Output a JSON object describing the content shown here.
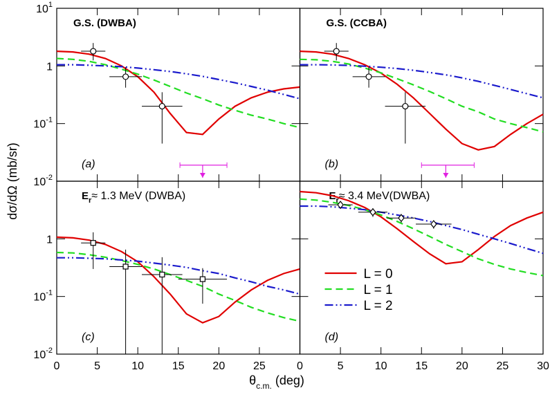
{
  "ylabel": "dσ/dΩ (mb/sr)",
  "xlabel": {
    "main": "θ",
    "sub": "c.m.",
    "rest": " (deg)"
  },
  "chart_data": [
    {
      "type": "line",
      "title": "G.S. (DWBA)",
      "panel_label": "(a)",
      "log_y": true,
      "xlim": [
        0,
        30
      ],
      "ylim": [
        0.01,
        10
      ],
      "xticks": [
        0,
        5,
        10,
        15,
        20,
        25,
        30
      ],
      "xtick_labels": false,
      "yticks": [
        {
          "value": 0.01,
          "label": "10",
          "sup": "-2"
        },
        {
          "value": 0.1,
          "label": "10",
          "sup": "-1"
        },
        1,
        {
          "value": 10,
          "label": "10",
          "sup": "1"
        }
      ],
      "x": [
        0,
        2,
        4,
        6,
        8,
        10,
        12,
        14,
        16,
        18,
        20,
        22,
        24,
        26,
        28,
        30
      ],
      "series": [
        {
          "color": "#e00000",
          "dash": "solid",
          "values": [
            1.8,
            1.75,
            1.6,
            1.35,
            1.0,
            0.65,
            0.35,
            0.15,
            0.07,
            0.065,
            0.12,
            0.2,
            0.28,
            0.35,
            0.4,
            0.43
          ]
        },
        {
          "color": "#22dd22",
          "dash": "dashed",
          "values": [
            1.35,
            1.3,
            1.2,
            1.05,
            0.88,
            0.72,
            0.57,
            0.44,
            0.34,
            0.27,
            0.21,
            0.17,
            0.14,
            0.12,
            0.1,
            0.085
          ]
        },
        {
          "color": "#1a1acc",
          "dash": "dashdot",
          "values": [
            1.05,
            1.05,
            1.03,
            1.0,
            0.97,
            0.92,
            0.86,
            0.8,
            0.73,
            0.66,
            0.58,
            0.51,
            0.44,
            0.38,
            0.32,
            0.27
          ]
        }
      ],
      "points": {
        "marker": "circle",
        "x": [
          4.5,
          8.5,
          13
        ],
        "values": [
          1.8,
          0.65,
          0.2
        ],
        "xerr": [
          1.5,
          2,
          2.5
        ],
        "y_low": [
          1.25,
          0.42,
          0.045
        ],
        "y_high": [
          2.5,
          0.95,
          0.35
        ]
      },
      "limit": {
        "color": "#e020e0",
        "x": 18,
        "x_low": 15.2,
        "x_high": 21,
        "y": 0.019,
        "y_tip": 0.0115
      }
    },
    {
      "type": "line",
      "title": "G.S. (CCBA)",
      "panel_label": "(b)",
      "log_y": true,
      "xlim": [
        0,
        30
      ],
      "ylim": [
        0.01,
        10
      ],
      "xticks": [
        0,
        5,
        10,
        15,
        20,
        25,
        30
      ],
      "xtick_labels": false,
      "yticks": [
        0.01,
        0.1,
        1,
        10
      ],
      "ytick_labels": false,
      "x": [
        0,
        2,
        4,
        6,
        8,
        10,
        12,
        14,
        16,
        18,
        20,
        22,
        24,
        26,
        28,
        30
      ],
      "series": [
        {
          "color": "#e00000",
          "dash": "solid",
          "values": [
            1.8,
            1.75,
            1.6,
            1.35,
            1.05,
            0.75,
            0.48,
            0.28,
            0.15,
            0.08,
            0.045,
            0.035,
            0.04,
            0.065,
            0.1,
            0.145
          ]
        },
        {
          "color": "#22dd22",
          "dash": "dashed",
          "values": [
            1.3,
            1.28,
            1.2,
            1.08,
            0.92,
            0.76,
            0.6,
            0.47,
            0.36,
            0.27,
            0.2,
            0.16,
            0.12,
            0.1,
            0.085,
            0.072
          ]
        },
        {
          "color": "#1a1acc",
          "dash": "dashdot",
          "values": [
            1.05,
            1.05,
            1.04,
            1.02,
            0.99,
            0.95,
            0.9,
            0.84,
            0.77,
            0.7,
            0.62,
            0.54,
            0.46,
            0.39,
            0.33,
            0.28
          ]
        }
      ],
      "points": {
        "marker": "circle",
        "x": [
          4.5,
          8.5,
          13
        ],
        "values": [
          1.8,
          0.65,
          0.2
        ],
        "xerr": [
          1.5,
          2,
          2.5
        ],
        "y_low": [
          1.25,
          0.42,
          0.045
        ],
        "y_high": [
          2.5,
          0.95,
          0.35
        ]
      },
      "limit": {
        "color": "#e020e0",
        "x": 18,
        "x_low": 15,
        "x_high": 21.5,
        "y": 0.019,
        "y_tip": 0.0115
      }
    },
    {
      "type": "line",
      "title": "E",
      "title_sub": "r",
      "title_rest": "≈ 1.3 MeV (DWBA)",
      "panel_label": "(c)",
      "log_y": true,
      "xlim": [
        0,
        30
      ],
      "ylim": [
        0.01,
        10
      ],
      "xticks": [
        0,
        5,
        10,
        15,
        20,
        25
      ],
      "yticks": [
        {
          "value": 0.01,
          "label": "10",
          "sup": "-2"
        },
        {
          "value": 0.1,
          "label": "10",
          "sup": "-1"
        },
        1
      ],
      "x": [
        0,
        2,
        4,
        6,
        8,
        10,
        12,
        14,
        16,
        18,
        20,
        22,
        24,
        26,
        28,
        30
      ],
      "series": [
        {
          "color": "#e00000",
          "dash": "solid",
          "values": [
            1.07,
            1.04,
            0.95,
            0.8,
            0.6,
            0.4,
            0.22,
            0.11,
            0.05,
            0.035,
            0.045,
            0.08,
            0.13,
            0.19,
            0.25,
            0.3
          ]
        },
        {
          "color": "#22dd22",
          "dash": "dashed",
          "values": [
            0.58,
            0.57,
            0.53,
            0.48,
            0.42,
            0.36,
            0.3,
            0.24,
            0.19,
            0.15,
            0.11,
            0.085,
            0.065,
            0.052,
            0.043,
            0.037
          ]
        },
        {
          "color": "#1a1acc",
          "dash": "dashdot",
          "values": [
            0.47,
            0.47,
            0.46,
            0.45,
            0.43,
            0.41,
            0.38,
            0.35,
            0.32,
            0.28,
            0.25,
            0.21,
            0.18,
            0.15,
            0.13,
            0.11
          ]
        }
      ],
      "points": {
        "marker": "square",
        "x": [
          4.5,
          8.5,
          13,
          18
        ],
        "values": [
          0.85,
          0.33,
          0.24,
          0.2
        ],
        "xerr": [
          1.5,
          2,
          2.5,
          3
        ],
        "y_low": [
          0.3,
          0.01,
          0.01,
          0.075
        ],
        "y_high": [
          1.3,
          0.65,
          0.48,
          0.31
        ]
      }
    },
    {
      "type": "line",
      "title": "E",
      "title_sub": "r",
      "title_rest": "≈ 3.4 MeV(DWBA)",
      "panel_label": "(d)",
      "log_y": true,
      "xlim": [
        0,
        30
      ],
      "ylim": [
        0.01,
        10
      ],
      "xticks": [
        0,
        5,
        10,
        15,
        20,
        25,
        30
      ],
      "yticks": [
        0.01,
        0.1,
        1,
        10
      ],
      "ytick_labels": false,
      "legend": "center-left",
      "x": [
        0,
        2,
        4,
        6,
        8,
        10,
        12,
        14,
        16,
        18,
        20,
        22,
        24,
        26,
        28,
        30
      ],
      "series": [
        {
          "name": "L = 0",
          "color": "#e00000",
          "dash": "solid",
          "values": [
            6.6,
            6.3,
            5.6,
            4.6,
            3.5,
            2.4,
            1.5,
            0.9,
            0.55,
            0.37,
            0.4,
            0.65,
            1.1,
            1.7,
            2.3,
            2.9
          ]
        },
        {
          "name": "L = 1",
          "color": "#22dd22",
          "dash": "dashed",
          "values": [
            4.9,
            4.7,
            4.3,
            3.8,
            3.2,
            2.6,
            2.0,
            1.5,
            1.1,
            0.8,
            0.6,
            0.45,
            0.36,
            0.3,
            0.26,
            0.23
          ]
        },
        {
          "name": "L = 2",
          "color": "#1a1acc",
          "dash": "dashdot",
          "values": [
            3.7,
            3.7,
            3.6,
            3.4,
            3.2,
            2.9,
            2.6,
            2.3,
            2.0,
            1.7,
            1.45,
            1.2,
            1.0,
            0.83,
            0.68,
            0.56
          ]
        }
      ],
      "points": {
        "marker": "diamond",
        "x": [
          5,
          9,
          12.5,
          16.5
        ],
        "values": [
          3.9,
          2.9,
          2.3,
          1.8
        ],
        "xerr": [
          1.5,
          1.8,
          1.8,
          2.2
        ],
        "y_low": [
          3.3,
          2.4,
          1.9,
          1.5
        ],
        "y_high": [
          4.5,
          3.4,
          2.7,
          2.1
        ]
      }
    }
  ]
}
